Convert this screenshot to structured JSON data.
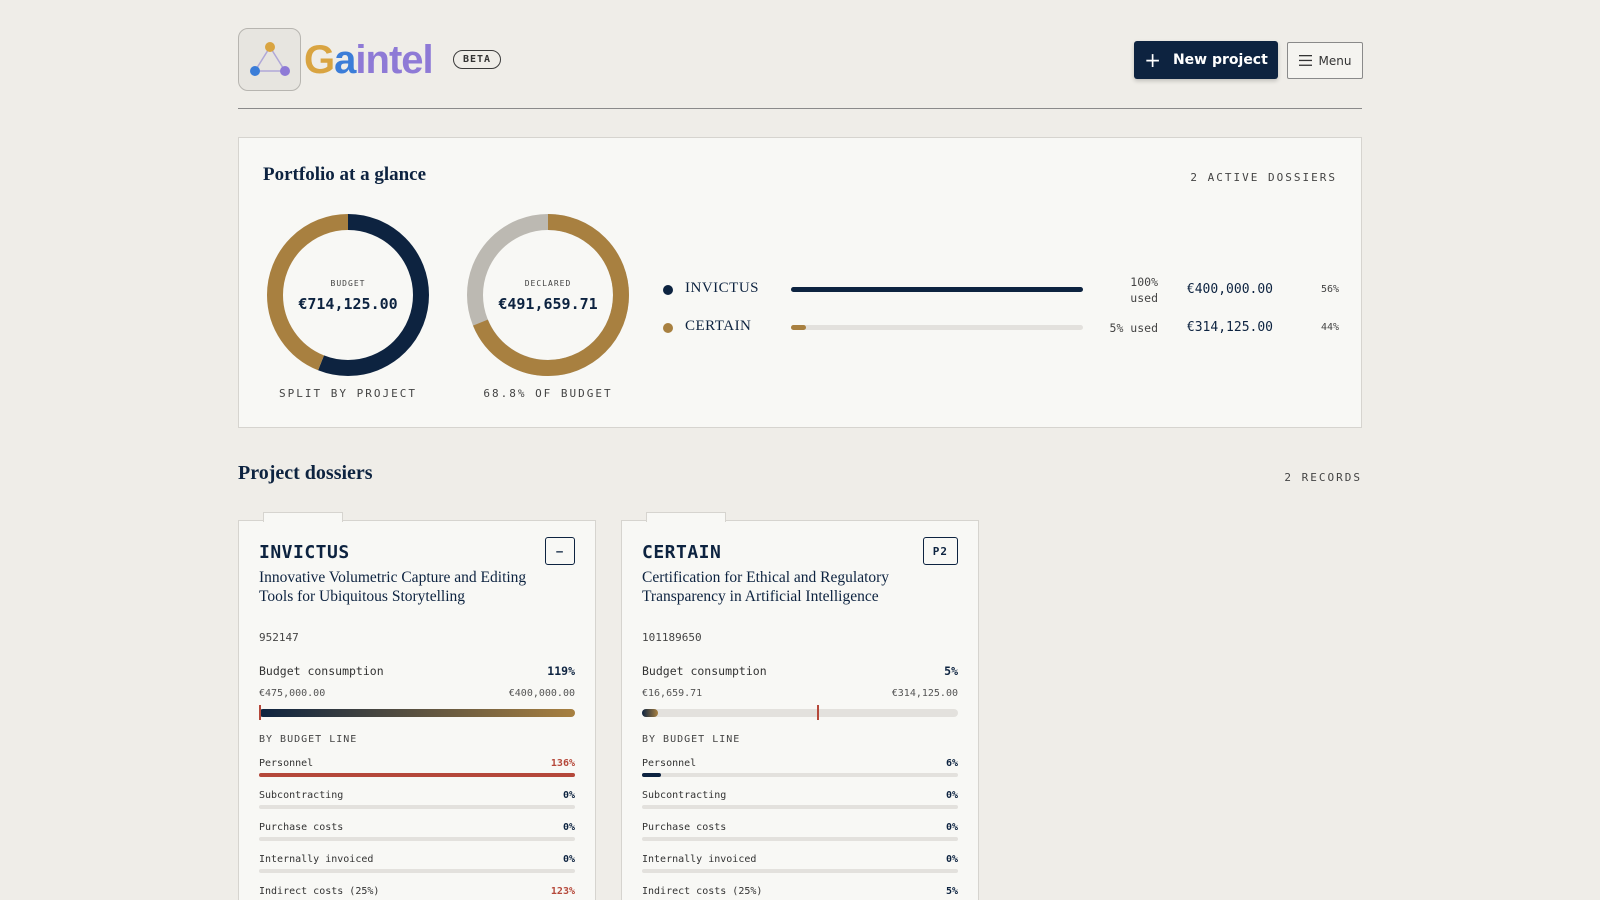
{
  "brand": {
    "name": "Gaintel",
    "badge": "BETA",
    "colors": {
      "g": "#d9a441",
      "a": "#3b7dd8",
      "rest": "#8e7ad6"
    }
  },
  "header": {
    "new_project_label": "New project",
    "menu_label": "Menu",
    "icons": {
      "new": "plus-icon",
      "menu": "hamburger-icon",
      "logo": "triangle-network-icon"
    }
  },
  "portfolio": {
    "title": "Portfolio at a glance",
    "count_label": "2 ACTIVE DOSSIERS",
    "budget_donut": {
      "label": "BUDGET",
      "value": "€714,125.00",
      "caption": "SPLIT BY PROJECT",
      "segments": [
        {
          "name": "INVICTUS",
          "fraction": 0.56,
          "color": "#0d2340"
        },
        {
          "name": "CERTAIN",
          "fraction": 0.44,
          "color": "#a88040"
        }
      ]
    },
    "declared_donut": {
      "label": "DECLARED",
      "value": "€491,659.71",
      "caption": "68.8% OF BUDGET",
      "fraction": 0.688,
      "fill_color": "#a88040",
      "track_color": "#bcb9b2"
    },
    "legend": [
      {
        "name": "INVICTUS",
        "color": "#0d2340",
        "used_fraction": 1.0,
        "used_line1": "100%",
        "used_line2": "used",
        "amount": "€400,000.00",
        "pct": "56%"
      },
      {
        "name": "CERTAIN",
        "color": "#a88040",
        "used_fraction": 0.05,
        "used_line1": "5% used",
        "used_line2": "",
        "amount": "€314,125.00",
        "pct": "44%"
      }
    ]
  },
  "dossiers": {
    "title": "Project dossiers",
    "count_label": "2 RECORDS",
    "cards": [
      {
        "acronym": "INVICTUS",
        "badge": "–",
        "name": "Innovative Volumetric Capture and Editing Tools for Ubiquitous Storytelling",
        "id": "952147",
        "consumption_label": "Budget consumption",
        "consumption_pct": "119%",
        "spent": "€475,000.00",
        "budget": "€400,000.00",
        "consumption_fraction": 1.0,
        "marker_fraction": 0.0,
        "by_line_title": "BY BUDGET LINE",
        "lines": [
          {
            "label": "Personnel",
            "pct": "136%",
            "fraction": 1.0,
            "over": true
          },
          {
            "label": "Subcontracting",
            "pct": "0%",
            "fraction": 0,
            "over": false
          },
          {
            "label": "Purchase costs",
            "pct": "0%",
            "fraction": 0,
            "over": false
          },
          {
            "label": "Internally invoiced",
            "pct": "0%",
            "fraction": 0,
            "over": false
          },
          {
            "label": "Indirect costs (25%)",
            "pct": "123%",
            "fraction": 1.0,
            "over": true
          }
        ]
      },
      {
        "acronym": "CERTAIN",
        "badge": "P2",
        "name": "Certification for Ethical and Regulatory Transparency in Artificial Intelligence",
        "id": "101189650",
        "consumption_label": "Budget consumption",
        "consumption_pct": "5%",
        "spent": "€16,659.71",
        "budget": "€314,125.00",
        "consumption_fraction": 0.05,
        "marker_fraction": 0.555,
        "by_line_title": "BY BUDGET LINE",
        "lines": [
          {
            "label": "Personnel",
            "pct": "6%",
            "fraction": 0.06,
            "over": false
          },
          {
            "label": "Subcontracting",
            "pct": "0%",
            "fraction": 0,
            "over": false
          },
          {
            "label": "Purchase costs",
            "pct": "0%",
            "fraction": 0,
            "over": false
          },
          {
            "label": "Internally invoiced",
            "pct": "0%",
            "fraction": 0,
            "over": false
          },
          {
            "label": "Indirect costs (25%)",
            "pct": "5%",
            "fraction": 0.05,
            "over": false
          }
        ]
      }
    ]
  }
}
